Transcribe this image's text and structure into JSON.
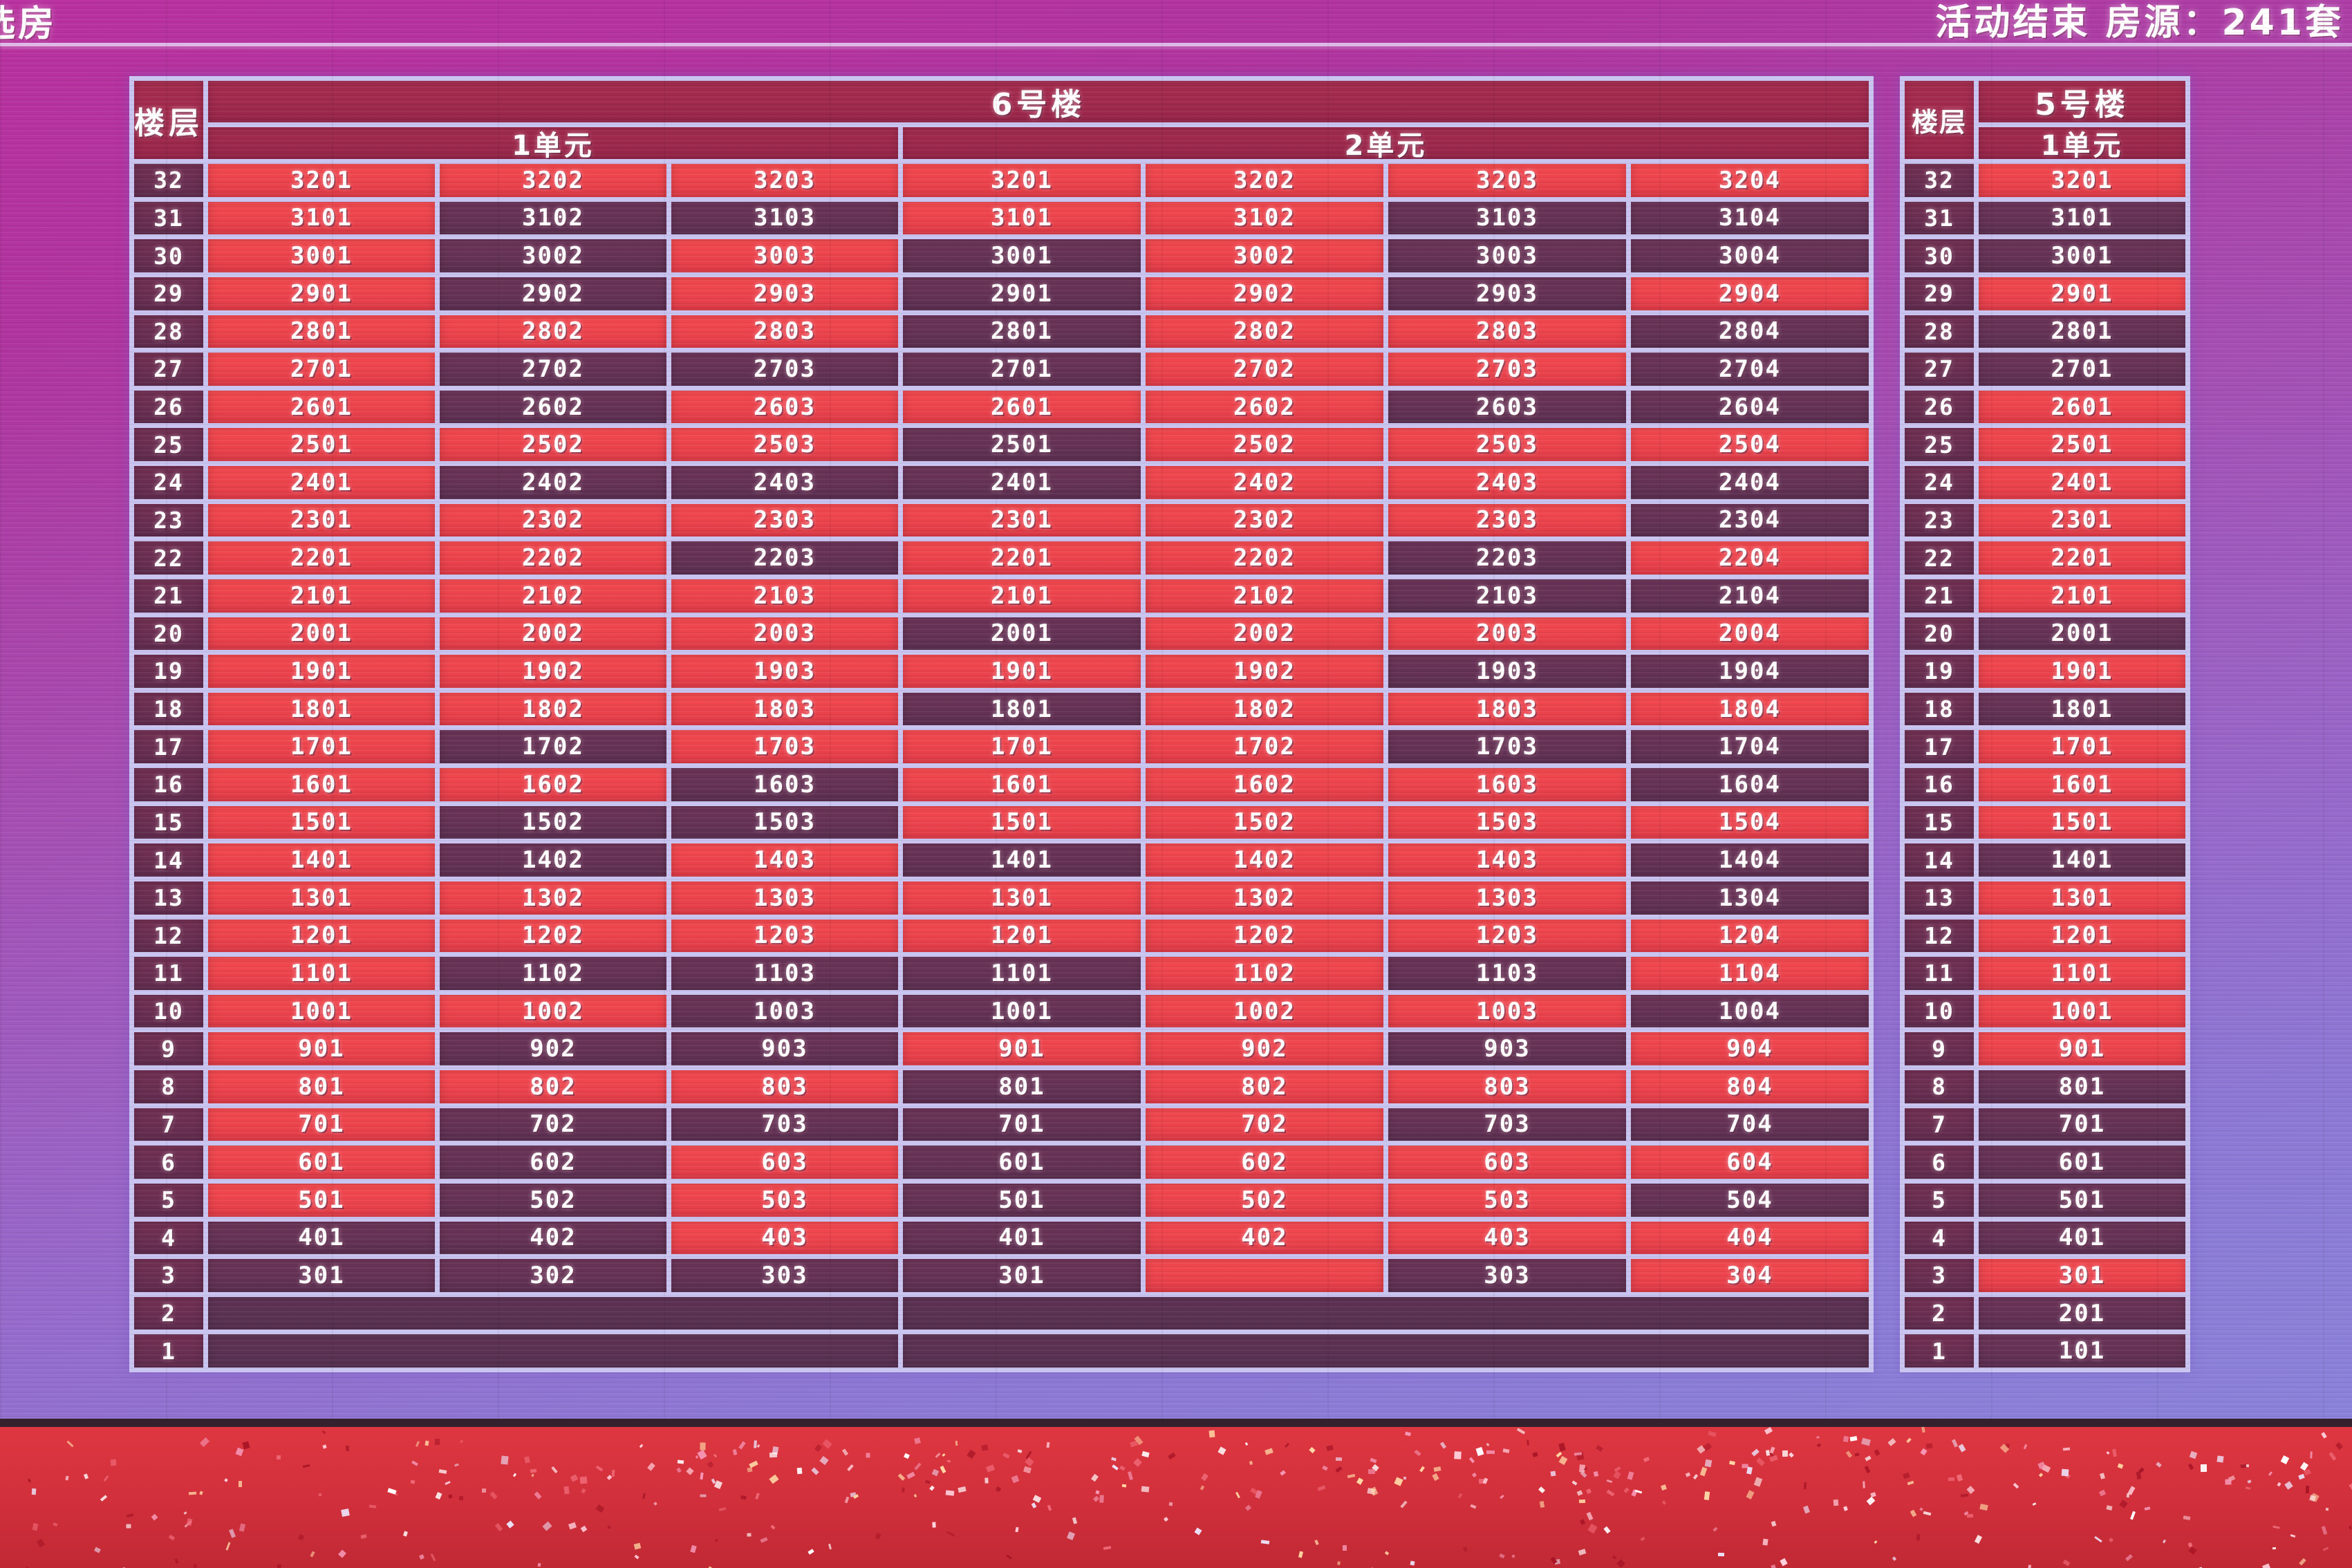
{
  "screen": {
    "top_left_text": "选房",
    "top_right_text": "活动结束 房源：241套"
  },
  "colors": {
    "available_cell": "#ee434c",
    "taken_cell": "#653156",
    "header": "#a02a4d",
    "floor_cell": "#6b2e51",
    "grid_border": "#c9c4f0",
    "bg_top": "#b9309f",
    "bg_bottom": "#8a82da",
    "carpet": "#d63640"
  },
  "building6": {
    "title": "6号楼",
    "floor_label": "楼层",
    "unit1_label": "1单元",
    "unit2_label": "2单元"
  },
  "building5": {
    "title": "5号楼",
    "floor_label": "楼层",
    "unit1_label": "1单元"
  },
  "rows": [
    {
      "f": "32",
      "u1": [
        "3201|A",
        "3202|A",
        "3203|A"
      ],
      "u2": [
        "3201|A",
        "3202|A",
        "3203|A",
        "3204|A"
      ],
      "b5": "3201|A"
    },
    {
      "f": "31",
      "u1": [
        "3101|A",
        "3102|S",
        "3103|S"
      ],
      "u2": [
        "3101|A",
        "3102|A",
        "3103|S",
        "3104|S"
      ],
      "b5": "3101|S"
    },
    {
      "f": "30",
      "u1": [
        "3001|A",
        "3002|S",
        "3003|A"
      ],
      "u2": [
        "3001|S",
        "3002|A",
        "3003|S",
        "3004|S"
      ],
      "b5": "3001|S"
    },
    {
      "f": "29",
      "u1": [
        "2901|A",
        "2902|S",
        "2903|A"
      ],
      "u2": [
        "2901|S",
        "2902|A",
        "2903|S",
        "2904|A"
      ],
      "b5": "2901|A"
    },
    {
      "f": "28",
      "u1": [
        "2801|A",
        "2802|A",
        "2803|A"
      ],
      "u2": [
        "2801|S",
        "2802|A",
        "2803|A",
        "2804|S"
      ],
      "b5": "2801|S"
    },
    {
      "f": "27",
      "u1": [
        "2701|A",
        "2702|S",
        "2703|S"
      ],
      "u2": [
        "2701|S",
        "2702|A",
        "2703|A",
        "2704|S"
      ],
      "b5": "2701|S"
    },
    {
      "f": "26",
      "u1": [
        "2601|A",
        "2602|S",
        "2603|A"
      ],
      "u2": [
        "2601|A",
        "2602|A",
        "2603|S",
        "2604|S"
      ],
      "b5": "2601|A"
    },
    {
      "f": "25",
      "u1": [
        "2501|A",
        "2502|A",
        "2503|A"
      ],
      "u2": [
        "2501|S",
        "2502|A",
        "2503|A",
        "2504|A"
      ],
      "b5": "2501|A"
    },
    {
      "f": "24",
      "u1": [
        "2401|A",
        "2402|S",
        "2403|S"
      ],
      "u2": [
        "2401|S",
        "2402|A",
        "2403|A",
        "2404|S"
      ],
      "b5": "2401|A"
    },
    {
      "f": "23",
      "u1": [
        "2301|A",
        "2302|A",
        "2303|A"
      ],
      "u2": [
        "2301|A",
        "2302|A",
        "2303|A",
        "2304|S"
      ],
      "b5": "2301|A"
    },
    {
      "f": "22",
      "u1": [
        "2201|A",
        "2202|A",
        "2203|S"
      ],
      "u2": [
        "2201|A",
        "2202|A",
        "2203|S",
        "2204|A"
      ],
      "b5": "2201|A"
    },
    {
      "f": "21",
      "u1": [
        "2101|A",
        "2102|A",
        "2103|A"
      ],
      "u2": [
        "2101|A",
        "2102|A",
        "2103|S",
        "2104|S"
      ],
      "b5": "2101|A"
    },
    {
      "f": "20",
      "u1": [
        "2001|A",
        "2002|A",
        "2003|A"
      ],
      "u2": [
        "2001|S",
        "2002|A",
        "2003|A",
        "2004|A"
      ],
      "b5": "2001|S"
    },
    {
      "f": "19",
      "u1": [
        "1901|A",
        "1902|A",
        "1903|A"
      ],
      "u2": [
        "1901|A",
        "1902|A",
        "1903|S",
        "1904|S"
      ],
      "b5": "1901|A"
    },
    {
      "f": "18",
      "u1": [
        "1801|A",
        "1802|A",
        "1803|A"
      ],
      "u2": [
        "1801|S",
        "1802|A",
        "1803|A",
        "1804|A"
      ],
      "b5": "1801|S"
    },
    {
      "f": "17",
      "u1": [
        "1701|A",
        "1702|S",
        "1703|A"
      ],
      "u2": [
        "1701|A",
        "1702|A",
        "1703|S",
        "1704|S"
      ],
      "b5": "1701|A"
    },
    {
      "f": "16",
      "u1": [
        "1601|A",
        "1602|A",
        "1603|S"
      ],
      "u2": [
        "1601|A",
        "1602|A",
        "1603|A",
        "1604|S"
      ],
      "b5": "1601|A"
    },
    {
      "f": "15",
      "u1": [
        "1501|A",
        "1502|S",
        "1503|S"
      ],
      "u2": [
        "1501|A",
        "1502|A",
        "1503|A",
        "1504|A"
      ],
      "b5": "1501|A"
    },
    {
      "f": "14",
      "u1": [
        "1401|A",
        "1402|S",
        "1403|A"
      ],
      "u2": [
        "1401|S",
        "1402|A",
        "1403|A",
        "1404|S"
      ],
      "b5": "1401|S"
    },
    {
      "f": "13",
      "u1": [
        "1301|A",
        "1302|A",
        "1303|A"
      ],
      "u2": [
        "1301|A",
        "1302|A",
        "1303|A",
        "1304|S"
      ],
      "b5": "1301|A"
    },
    {
      "f": "12",
      "u1": [
        "1201|A",
        "1202|A",
        "1203|A"
      ],
      "u2": [
        "1201|A",
        "1202|A",
        "1203|A",
        "1204|A"
      ],
      "b5": "1201|A"
    },
    {
      "f": "11",
      "u1": [
        "1101|A",
        "1102|S",
        "1103|S"
      ],
      "u2": [
        "1101|S",
        "1102|A",
        "1103|S",
        "1104|A"
      ],
      "b5": "1101|A"
    },
    {
      "f": "10",
      "u1": [
        "1001|A",
        "1002|A",
        "1003|S"
      ],
      "u2": [
        "1001|S",
        "1002|A",
        "1003|A",
        "1004|S"
      ],
      "b5": "1001|A"
    },
    {
      "f": "9",
      "u1": [
        "901|A",
        "902|S",
        "903|S"
      ],
      "u2": [
        "901|A",
        "902|A",
        "903|S",
        "904|A"
      ],
      "b5": "901|A"
    },
    {
      "f": "8",
      "u1": [
        "801|A",
        "802|A",
        "803|A"
      ],
      "u2": [
        "801|S",
        "802|A",
        "803|A",
        "804|A"
      ],
      "b5": "801|S"
    },
    {
      "f": "7",
      "u1": [
        "701|A",
        "702|S",
        "703|S"
      ],
      "u2": [
        "701|S",
        "702|A",
        "703|S",
        "704|S"
      ],
      "b5": "701|S"
    },
    {
      "f": "6",
      "u1": [
        "601|A",
        "602|S",
        "603|A"
      ],
      "u2": [
        "601|S",
        "602|A",
        "603|A",
        "604|A"
      ],
      "b5": "601|S"
    },
    {
      "f": "5",
      "u1": [
        "501|A",
        "502|S",
        "503|A"
      ],
      "u2": [
        "501|S",
        "502|A",
        "503|A",
        "504|S"
      ],
      "b5": "501|S"
    },
    {
      "f": "4",
      "u1": [
        "401|S",
        "402|S",
        "403|A"
      ],
      "u2": [
        "401|S",
        "402|A",
        "403|A",
        "404|A"
      ],
      "b5": "401|S"
    },
    {
      "f": "3",
      "u1": [
        "301|S",
        "302|S",
        "303|S"
      ],
      "u2": [
        "301|S",
        "|A",
        "303|S",
        "304|A"
      ],
      "b5": "301|A"
    },
    {
      "f": "2",
      "u1": null,
      "u2": null,
      "b5": "201|S"
    },
    {
      "f": "1",
      "u1": null,
      "u2": null,
      "b5": "101|S"
    }
  ]
}
